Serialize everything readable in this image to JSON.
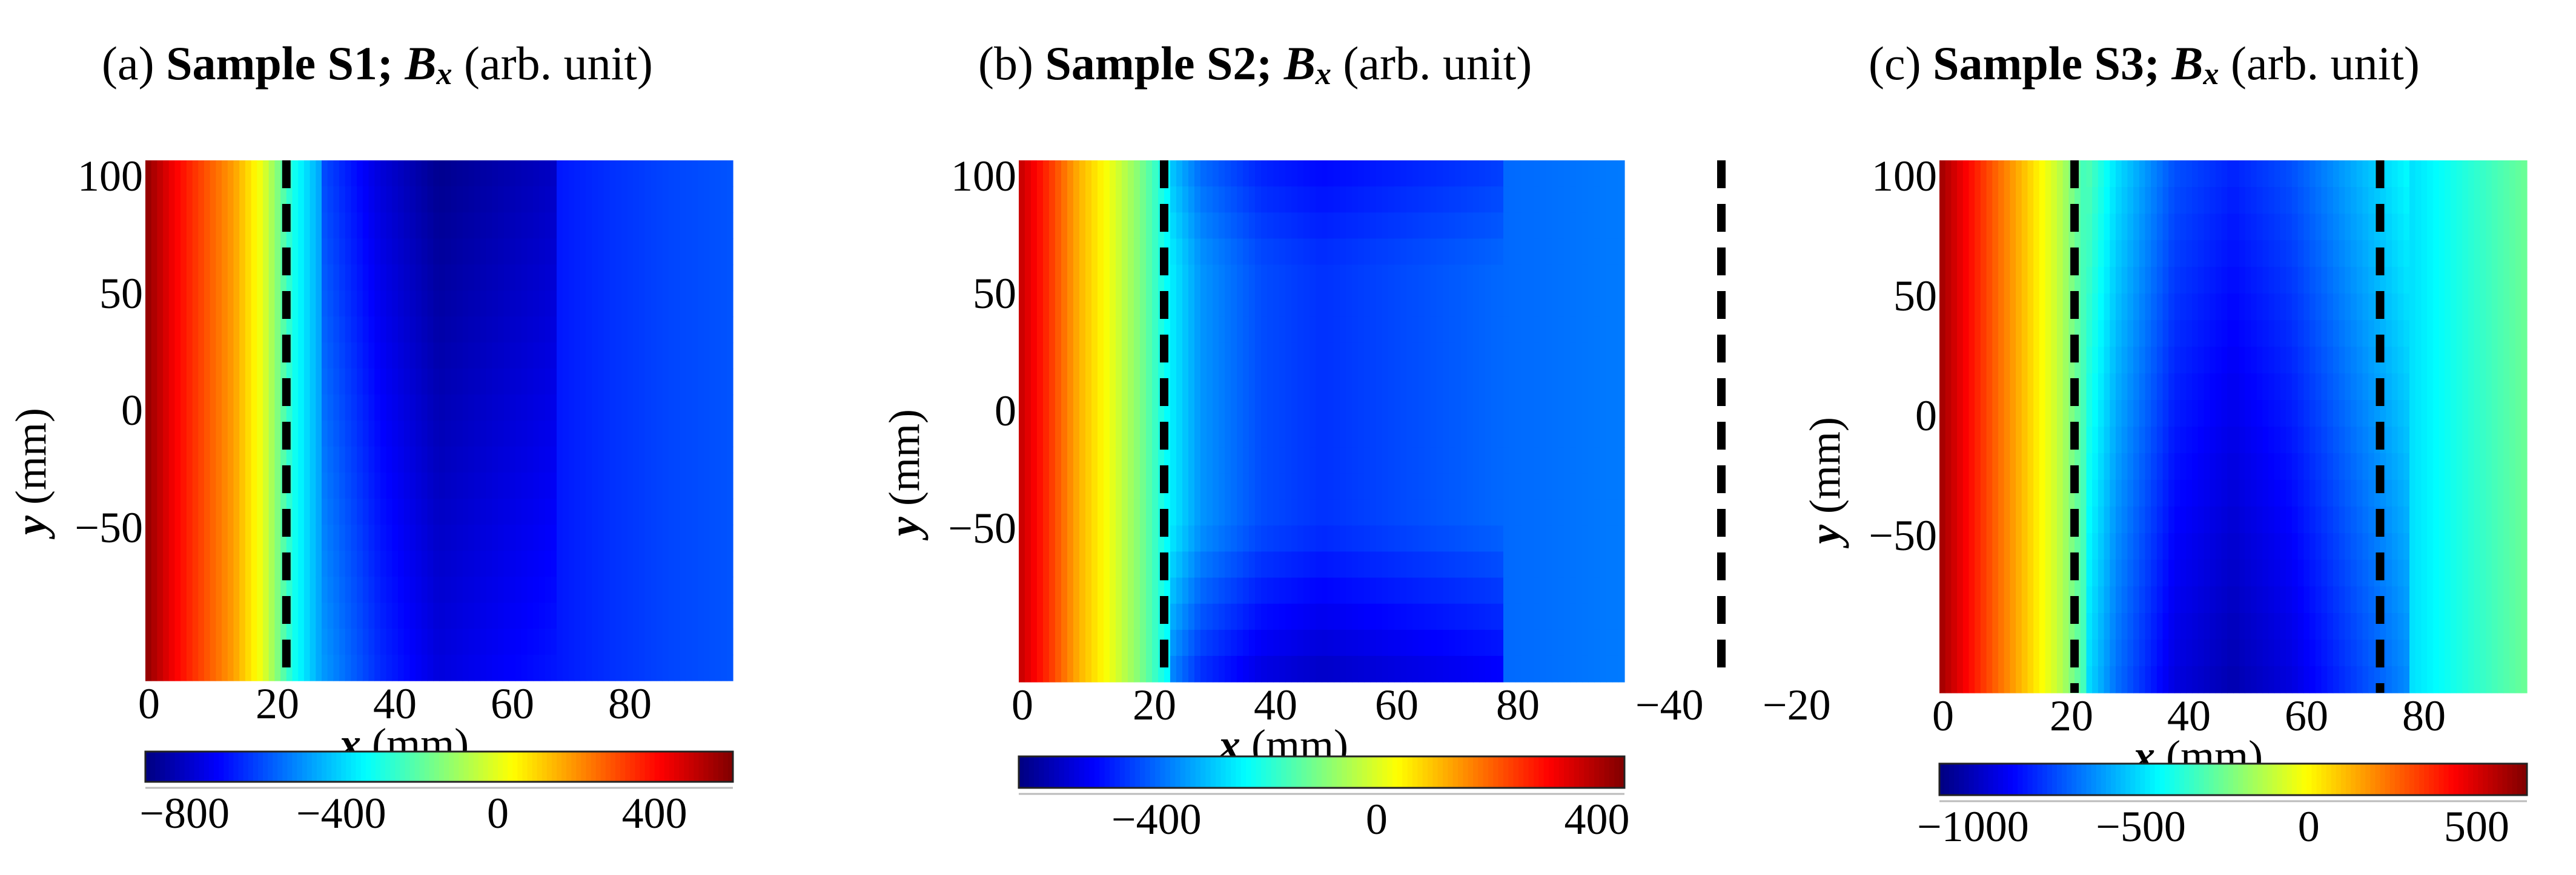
{
  "panels": [
    {
      "title_prefix": "(a)",
      "title_bold": "Sample S1;",
      "title_var": "B",
      "title_sub": "x",
      "title_suffix": "(arb. unit)",
      "xlabel_var": "x",
      "xlabel_unit": "(mm)",
      "ylabel_var": "y",
      "ylabel_unit": "(mm)",
      "xticks": [
        "0",
        "20",
        "40",
        "60",
        "80"
      ],
      "yticks": [
        "100",
        "50",
        "0",
        "−50"
      ],
      "cbar_ticks": [
        "−800",
        "−400",
        "0",
        "400"
      ],
      "extra_ticks": []
    },
    {
      "title_prefix": "(b)",
      "title_bold": "Sample S2;",
      "title_var": "B",
      "title_sub": "x",
      "title_suffix": "(arb. unit)",
      "xlabel_var": "x",
      "xlabel_unit": "(mm)",
      "ylabel_var": "y",
      "ylabel_unit": "(mm)",
      "xticks": [
        "0",
        "20",
        "40",
        "60",
        "80"
      ],
      "yticks": [
        "100",
        "50",
        "0",
        "−50"
      ],
      "cbar_ticks": [
        "−400",
        "0",
        "400"
      ],
      "extra_ticks": [
        "−40",
        "−20"
      ]
    },
    {
      "title_prefix": "(c)",
      "title_bold": "Sample S3;",
      "title_var": "B",
      "title_sub": "x",
      "title_suffix": "(arb. unit)",
      "xlabel_var": "x",
      "xlabel_unit": "(mm)",
      "ylabel_var": "y",
      "ylabel_unit": "(mm)",
      "xticks": [
        "0",
        "20",
        "40",
        "60",
        "80"
      ],
      "yticks": [
        "100",
        "50",
        "0",
        "−50"
      ],
      "cbar_ticks": [
        "−1000",
        "−500",
        "0",
        "500"
      ],
      "extra_ticks": []
    }
  ],
  "chart_data": [
    {
      "type": "heatmap",
      "title": "(a) Sample S1; Bx (arb. unit)",
      "xlabel": "x (mm)",
      "ylabel": "y (mm)",
      "xlim": [
        0,
        100
      ],
      "ylim": [
        -100,
        100
      ],
      "colormap": "jet",
      "clim": [
        -900,
        600
      ],
      "colorbar_ticks": [
        -800,
        -400,
        0,
        400
      ],
      "dashed_lines_x": [
        24
      ],
      "field_profile_x": [
        0,
        5,
        10,
        15,
        20,
        25,
        30,
        40,
        50,
        60,
        70,
        80,
        90,
        100
      ],
      "field_profile_values": [
        580,
        420,
        300,
        180,
        0,
        -300,
        -480,
        -650,
        -760,
        -720,
        -680,
        -640,
        -610,
        -590
      ]
    },
    {
      "type": "heatmap",
      "title": "(b) Sample S2; Bx (arb. unit)",
      "xlabel": "x (mm)",
      "ylabel": "y (mm)",
      "xlim": [
        0,
        100
      ],
      "ylim": [
        -100,
        100
      ],
      "colormap": "jet",
      "clim": [
        -650,
        450
      ],
      "colorbar_ticks": [
        -400,
        0,
        400
      ],
      "dashed_lines_x": [
        24,
        116
      ],
      "field_profile_x": [
        0,
        5,
        10,
        15,
        20,
        25,
        30,
        40,
        50,
        60,
        70,
        80,
        90,
        100
      ],
      "field_profile_values": [
        380,
        260,
        120,
        20,
        -100,
        -250,
        -350,
        -430,
        -460,
        -440,
        -420,
        -400,
        -390,
        -380
      ]
    },
    {
      "type": "heatmap",
      "title": "(c) Sample S3; Bx (arb. unit)",
      "xlabel": "x (mm)",
      "ylabel": "y (mm)",
      "xlim": [
        0,
        100
      ],
      "ylim": [
        -100,
        100
      ],
      "colormap": "jet",
      "clim": [
        -1100,
        650
      ],
      "colorbar_ticks": [
        -1000,
        -500,
        0,
        500
      ],
      "dashed_lines_x": [
        23,
        75
      ],
      "field_profile_x": [
        0,
        5,
        10,
        15,
        20,
        25,
        30,
        40,
        50,
        60,
        70,
        80,
        90,
        100
      ],
      "field_profile_values": [
        600,
        420,
        250,
        80,
        -100,
        -350,
        -550,
        -800,
        -880,
        -800,
        -650,
        -500,
        -380,
        -260
      ]
    }
  ]
}
